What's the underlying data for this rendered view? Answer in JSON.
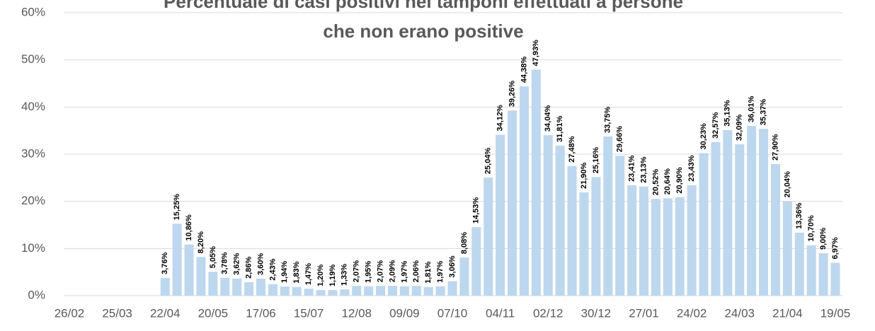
{
  "chart_data": {
    "type": "bar",
    "title": [
      "Percentuale di casi positivi nei tamponi effettuati a persone",
      "che non erano positive"
    ],
    "categories": [
      "26/02",
      null,
      null,
      null,
      "25/03",
      null,
      null,
      null,
      "22/04",
      null,
      null,
      null,
      "20/05",
      null,
      null,
      null,
      "17/06",
      null,
      null,
      null,
      "15/07",
      null,
      null,
      null,
      "12/08",
      null,
      null,
      null,
      "09/09",
      null,
      null,
      null,
      "07/10",
      null,
      null,
      null,
      "04/11",
      null,
      null,
      null,
      "02/12",
      null,
      null,
      null,
      "30/12",
      null,
      null,
      null,
      "27/01",
      null,
      null,
      null,
      "24/02",
      null,
      null,
      null,
      "24/03",
      null,
      null,
      null,
      "21/04",
      null,
      null,
      null,
      "19/05"
    ],
    "values": [
      null,
      null,
      null,
      null,
      null,
      null,
      null,
      null,
      3.76,
      15.25,
      10.86,
      8.2,
      5.05,
      3.78,
      3.62,
      2.86,
      3.6,
      2.43,
      1.94,
      1.83,
      1.47,
      1.2,
      1.19,
      1.33,
      2.07,
      1.95,
      2.07,
      2.09,
      1.97,
      2.06,
      1.81,
      1.97,
      3.06,
      8.08,
      14.53,
      25.04,
      34.12,
      39.26,
      44.38,
      47.93,
      34.04,
      31.81,
      27.48,
      21.9,
      25.16,
      33.75,
      29.66,
      23.41,
      23.13,
      20.52,
      20.64,
      20.9,
      23.43,
      30.23,
      32.57,
      35.13,
      32.09,
      36.01,
      35.37,
      27.9,
      20.04,
      13.36,
      10.7,
      9.0,
      6.97
    ],
    "value_labels": [
      null,
      null,
      null,
      null,
      null,
      null,
      null,
      null,
      "3,76%",
      "15,25%",
      "10,86%",
      "8,20%",
      "5,05%",
      "3,78%",
      "3,62%",
      "2,86%",
      "3,60%",
      "2,43%",
      "1,94%",
      "1,83%",
      "1,47%",
      "1,20%",
      "1,19%",
      "1,33%",
      "2,07%",
      "1,95%",
      "2,07%",
      "2,09%",
      "1,97%",
      "2,06%",
      "1,81%",
      "1,97%",
      "3,06%",
      "8,08%",
      "14,53%",
      "25,04%",
      "34,12%",
      "39,26%",
      "44,38%",
      "47,93%",
      "34,04%",
      "31,81%",
      "27,48%",
      "21,90%",
      "25,16%",
      "33,75%",
      "29,66%",
      "23,41%",
      "23,13%",
      "20,52%",
      "20,64%",
      "20,90%",
      "23,43%",
      "30,23%",
      "32,57%",
      "35,13%",
      "32,09%",
      "36,01%",
      "35,37%",
      "27,90%",
      "20,04%",
      "13,36%",
      "10,70%",
      "9,00%",
      "6,97%"
    ],
    "color": "#bdd7ee",
    "ylim": [
      0,
      60
    ],
    "yticks": [
      {
        "value": 0,
        "label": "0%"
      },
      {
        "value": 10,
        "label": "10%"
      },
      {
        "value": 20,
        "label": "20%"
      },
      {
        "value": 30,
        "label": "30%"
      },
      {
        "value": 40,
        "label": "40%"
      },
      {
        "value": 50,
        "label": "50%"
      },
      {
        "value": 60,
        "label": "60%"
      }
    ],
    "grid": true
  }
}
